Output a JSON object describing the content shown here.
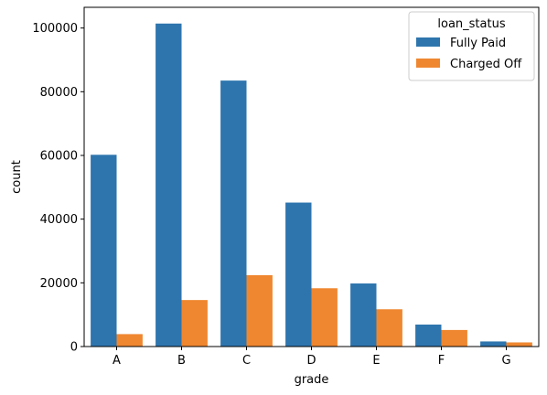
{
  "chart_data": {
    "type": "bar",
    "title": "",
    "xlabel": "grade",
    "ylabel": "count",
    "categories": [
      "A",
      "B",
      "C",
      "D",
      "E",
      "F",
      "G"
    ],
    "series": [
      {
        "name": "Fully Paid",
        "color": "#2e75ae",
        "values": [
          60200,
          101400,
          83500,
          45200,
          19800,
          6900,
          1600
        ]
      },
      {
        "name": "Charged Off",
        "color": "#ef8730",
        "values": [
          3900,
          14600,
          22400,
          18300,
          11700,
          5200,
          1300
        ]
      }
    ],
    "ylim": [
      0,
      106500
    ],
    "yticks": [
      0,
      20000,
      40000,
      60000,
      80000,
      100000
    ],
    "legend": {
      "title": "loan_status",
      "position": "top-right"
    },
    "grid": false
  }
}
